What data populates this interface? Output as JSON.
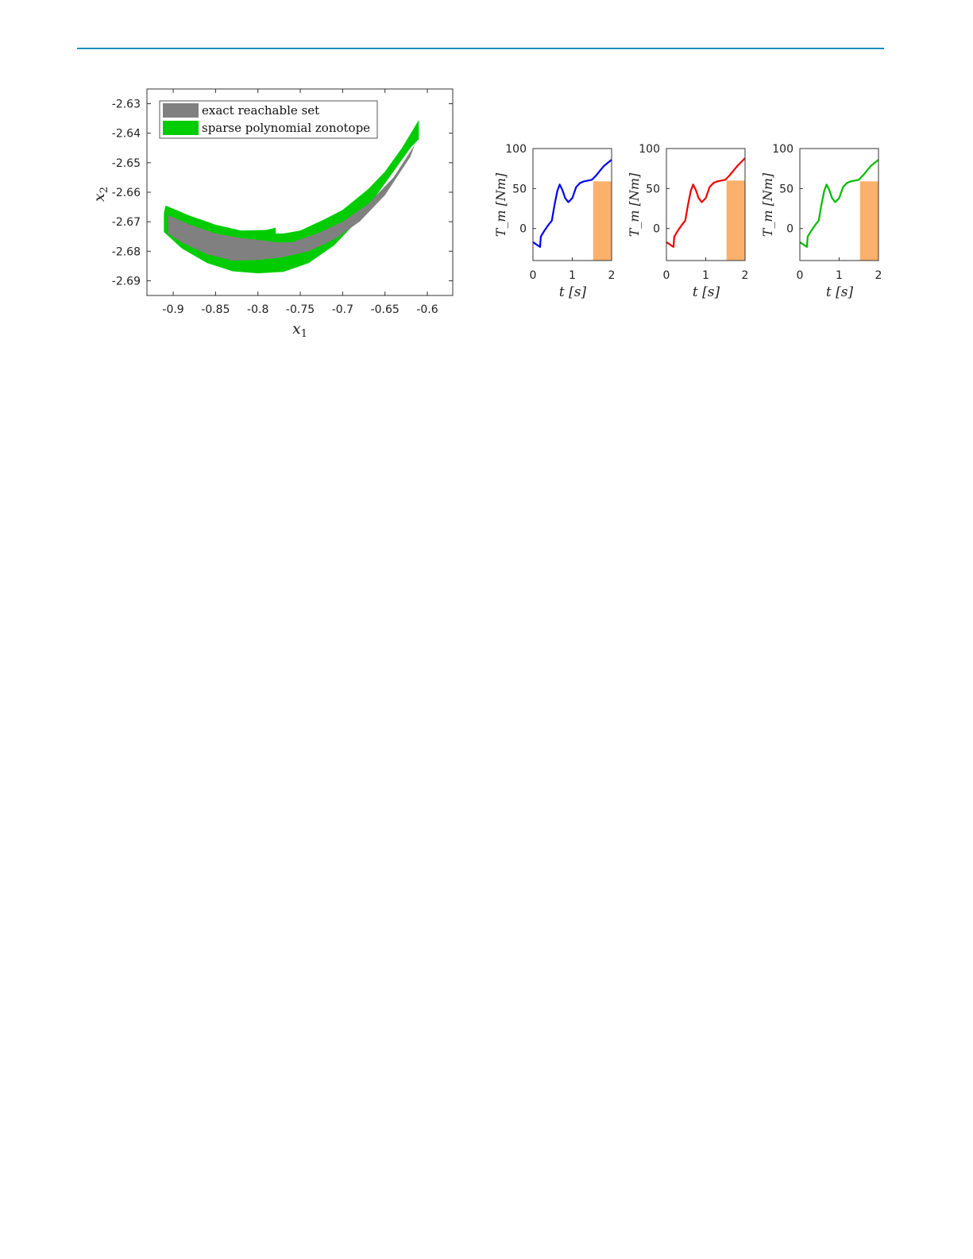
{
  "header": {
    "rule_color": "#1b8dc0"
  },
  "chart_data": [
    {
      "type": "area",
      "xlabel": "x1",
      "ylabel": "x2",
      "xlim": [
        -0.931,
        -0.57
      ],
      "ylim": [
        -2.695,
        -2.625
      ],
      "xticks": [
        "-0.9",
        "-0.85",
        "-0.8",
        "-0.75",
        "-0.7",
        "-0.65",
        "-0.6"
      ],
      "yticks": [
        "-2.63",
        "-2.64",
        "-2.65",
        "-2.66",
        "-2.67",
        "-2.68",
        "-2.69"
      ],
      "legend_position": "top-left",
      "grid": false,
      "series": [
        {
          "name": "sparse polynomial zonotope",
          "color": "#00cc00",
          "polygon": [
            [
              -0.909,
              -2.6645
            ],
            [
              -0.88,
              -2.668
            ],
            [
              -0.85,
              -2.671
            ],
            [
              -0.82,
              -2.673
            ],
            [
              -0.79,
              -2.6728
            ],
            [
              -0.779,
              -2.672
            ],
            [
              -0.779,
              -2.674
            ],
            [
              -0.77,
              -2.674
            ],
            [
              -0.75,
              -2.673
            ],
            [
              -0.72,
              -2.669
            ],
            [
              -0.7,
              -2.666
            ],
            [
              -0.67,
              -2.659
            ],
            [
              -0.65,
              -2.653
            ],
            [
              -0.63,
              -2.645
            ],
            [
              -0.61,
              -2.6355
            ],
            [
              -0.61,
              -2.642
            ],
            [
              -0.62,
              -2.645
            ],
            [
              -0.65,
              -2.657
            ],
            [
              -0.68,
              -2.669
            ],
            [
              -0.71,
              -2.678
            ],
            [
              -0.74,
              -2.684
            ],
            [
              -0.77,
              -2.687
            ],
            [
              -0.8,
              -2.6875
            ],
            [
              -0.83,
              -2.6868
            ],
            [
              -0.86,
              -2.684
            ],
            [
              -0.89,
              -2.679
            ],
            [
              -0.911,
              -2.6735
            ],
            [
              -0.911,
              -2.667
            ]
          ]
        },
        {
          "name": "exact reachable set",
          "color": "#808080",
          "polygon": [
            [
              -0.906,
              -2.6678
            ],
            [
              -0.88,
              -2.671
            ],
            [
              -0.85,
              -2.674
            ],
            [
              -0.82,
              -2.6755
            ],
            [
              -0.79,
              -2.6765
            ],
            [
              -0.778,
              -2.677
            ],
            [
              -0.76,
              -2.677
            ],
            [
              -0.73,
              -2.674
            ],
            [
              -0.7,
              -2.67
            ],
            [
              -0.67,
              -2.664
            ],
            [
              -0.64,
              -2.655
            ],
            [
              -0.615,
              -2.644
            ],
            [
              -0.62,
              -2.648
            ],
            [
              -0.65,
              -2.661
            ],
            [
              -0.68,
              -2.67
            ],
            [
              -0.71,
              -2.676
            ],
            [
              -0.74,
              -2.68
            ],
            [
              -0.77,
              -2.682
            ],
            [
              -0.8,
              -2.683
            ],
            [
              -0.83,
              -2.6832
            ],
            [
              -0.86,
              -2.681
            ],
            [
              -0.89,
              -2.677
            ],
            [
              -0.906,
              -2.674
            ]
          ]
        }
      ]
    },
    {
      "type": "line",
      "xlabel": "t [s]",
      "ylabel": "T_m [Nm]",
      "xlim": [
        0,
        2
      ],
      "ylim": [
        -40,
        100
      ],
      "xticks": [
        "0",
        "1",
        "2"
      ],
      "yticks": [
        "100",
        "50",
        "0"
      ],
      "color": "#0000ee",
      "x": [
        0,
        0.18,
        0.2,
        0.3,
        0.4,
        0.48,
        0.55,
        0.62,
        0.68,
        0.75,
        0.82,
        0.9,
        1.0,
        1.1,
        1.2,
        1.3,
        1.4,
        1.5,
        1.6,
        1.7,
        1.8,
        1.9,
        2.0
      ],
      "y": [
        -17,
        -23,
        -10,
        -2,
        5,
        10,
        30,
        47,
        55,
        48,
        38,
        33,
        38,
        52,
        57,
        59,
        60,
        61,
        66,
        72,
        78,
        82,
        86
      ],
      "constraint_region": {
        "t": [
          1.53,
          2
        ],
        "T_m": [
          -40,
          59
        ],
        "color": "#fbb16b"
      }
    },
    {
      "type": "line",
      "xlabel": "t [s]",
      "ylabel": "T_m [Nm]",
      "xlim": [
        0,
        2
      ],
      "ylim": [
        -40,
        100
      ],
      "xticks": [
        "0",
        "1",
        "2"
      ],
      "yticks": [
        "100",
        "50",
        "0"
      ],
      "color": "#ee0000",
      "x": [
        0,
        0.18,
        0.2,
        0.3,
        0.4,
        0.48,
        0.55,
        0.62,
        0.68,
        0.75,
        0.82,
        0.9,
        1.0,
        1.1,
        1.2,
        1.3,
        1.4,
        1.5,
        1.6,
        1.7,
        1.8,
        1.9,
        2.0
      ],
      "y": [
        -17,
        -23,
        -10,
        -2,
        5,
        10,
        30,
        47,
        55,
        48,
        38,
        33,
        38,
        52,
        57,
        59,
        60,
        61,
        66,
        72,
        78,
        83,
        88
      ],
      "constraint_region": {
        "t": [
          1.53,
          2
        ],
        "T_m": [
          -40,
          60
        ],
        "color": "#fbb16b"
      }
    },
    {
      "type": "line",
      "xlabel": "t [s]",
      "ylabel": "T_m [Nm]",
      "xlim": [
        0,
        2
      ],
      "ylim": [
        -40,
        100
      ],
      "xticks": [
        "0",
        "1",
        "2"
      ],
      "yticks": [
        "100",
        "50",
        "0"
      ],
      "color": "#00bb00",
      "x": [
        0,
        0.18,
        0.2,
        0.3,
        0.4,
        0.48,
        0.55,
        0.62,
        0.68,
        0.75,
        0.82,
        0.9,
        1.0,
        1.1,
        1.2,
        1.3,
        1.4,
        1.5,
        1.6,
        1.7,
        1.8,
        1.9,
        2.0
      ],
      "y": [
        -17,
        -23,
        -10,
        -2,
        5,
        10,
        30,
        47,
        55,
        48,
        38,
        33,
        38,
        52,
        57,
        59,
        60,
        61,
        66,
        72,
        78,
        82,
        86
      ],
      "constraint_region": {
        "t": [
          1.53,
          2
        ],
        "T_m": [
          -40,
          59
        ],
        "color": "#fbb16b"
      }
    }
  ]
}
